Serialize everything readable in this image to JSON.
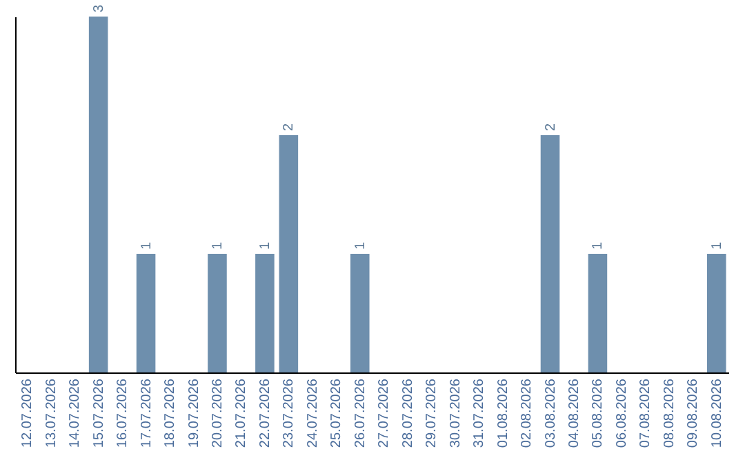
{
  "chart_data": {
    "type": "bar",
    "categories": [
      "12.07.2026",
      "13.07.2026",
      "14.07.2026",
      "15.07.2026",
      "16.07.2026",
      "17.07.2026",
      "18.07.2026",
      "19.07.2026",
      "20.07.2026",
      "21.07.2026",
      "22.07.2026",
      "23.07.2026",
      "24.07.2026",
      "25.07.2026",
      "26.07.2026",
      "27.07.2026",
      "28.07.2026",
      "29.07.2026",
      "30.07.2026",
      "31.07.2026",
      "01.08.2026",
      "02.08.2026",
      "03.08.2026",
      "04.08.2026",
      "05.08.2026",
      "06.08.2026",
      "07.08.2026",
      "08.08.2026",
      "09.08.2026",
      "10.08.2026"
    ],
    "values": [
      0,
      0,
      0,
      3,
      0,
      1,
      0,
      0,
      1,
      0,
      1,
      2,
      0,
      0,
      1,
      0,
      0,
      0,
      0,
      0,
      0,
      0,
      2,
      0,
      1,
      0,
      0,
      0,
      0,
      1
    ],
    "value_labels": [
      null,
      null,
      null,
      "3",
      null,
      "1",
      null,
      null,
      "1",
      null,
      "1",
      "2",
      null,
      null,
      "1",
      null,
      null,
      null,
      null,
      null,
      null,
      null,
      "2",
      null,
      "1",
      null,
      null,
      null,
      null,
      "1"
    ],
    "color": "#6e8fad",
    "tick_labels": "x",
    "grid": false
  }
}
